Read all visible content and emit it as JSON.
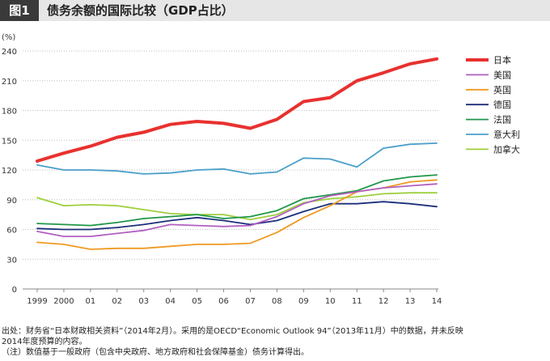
{
  "figure": {
    "badge": "图1",
    "title": "债务余额的国际比较（GDP占比）"
  },
  "source_note": {
    "line1": "出处：财务省“日本财政相关资料”（2014年2月）。采用的是OECD“Economic Outlook 94”（2013年11月）中的数据，并未反映",
    "line2": "2014年度预算的内容。",
    "line3": "（注）数值基于一般政府（包含中央政府、地方政府和社会保障基金）债务计算得出。"
  },
  "chart_data": {
    "type": "line",
    "title": "债务余额的国际比较（GDP占比）",
    "ylabel": "(%)",
    "xlabel": "",
    "ylim": [
      0,
      240
    ],
    "yticks": [
      0,
      30,
      60,
      90,
      120,
      150,
      180,
      210,
      240
    ],
    "grid": true,
    "legend_position": "top-right",
    "categories": [
      "1999",
      "2000",
      "01",
      "02",
      "03",
      "04",
      "05",
      "06",
      "07",
      "08",
      "09",
      "10",
      "11",
      "12",
      "13",
      "14"
    ],
    "series": [
      {
        "name": "日本",
        "color": "#e8312f",
        "width": 4,
        "values": [
          129,
          137,
          144,
          153,
          158,
          166,
          169,
          167,
          162,
          171,
          189,
          193,
          210,
          218,
          227,
          232
        ]
      },
      {
        "name": "美国",
        "color": "#b25fc2",
        "width": 1.8,
        "values": [
          58,
          53,
          53,
          56,
          59,
          65,
          64,
          63,
          64,
          73,
          86,
          94,
          98,
          102,
          104,
          106
        ]
      },
      {
        "name": "英国",
        "color": "#ef9a22",
        "width": 1.8,
        "values": [
          47,
          45,
          40,
          41,
          41,
          43,
          45,
          45,
          46,
          57,
          72,
          84,
          98,
          102,
          108,
          110
        ]
      },
      {
        "name": "德国",
        "color": "#1c2f7a",
        "width": 1.8,
        "values": [
          61,
          60,
          60,
          62,
          65,
          69,
          72,
          69,
          65,
          69,
          78,
          86,
          86,
          88,
          86,
          83
        ]
      },
      {
        "name": "法国",
        "color": "#21964a",
        "width": 1.8,
        "values": [
          66,
          65,
          64,
          67,
          71,
          73,
          75,
          71,
          73,
          79,
          91,
          95,
          99,
          109,
          113,
          115
        ]
      },
      {
        "name": "意大利",
        "color": "#4b9fc8",
        "width": 1.8,
        "values": [
          125,
          120,
          120,
          119,
          116,
          117,
          120,
          121,
          116,
          118,
          132,
          131,
          123,
          142,
          146,
          147
        ]
      },
      {
        "name": "加拿大",
        "color": "#9ecf3d",
        "width": 1.8,
        "values": [
          92,
          84,
          85,
          84,
          80,
          76,
          75,
          75,
          70,
          75,
          87,
          91,
          93,
          96,
          97,
          97
        ]
      }
    ]
  }
}
